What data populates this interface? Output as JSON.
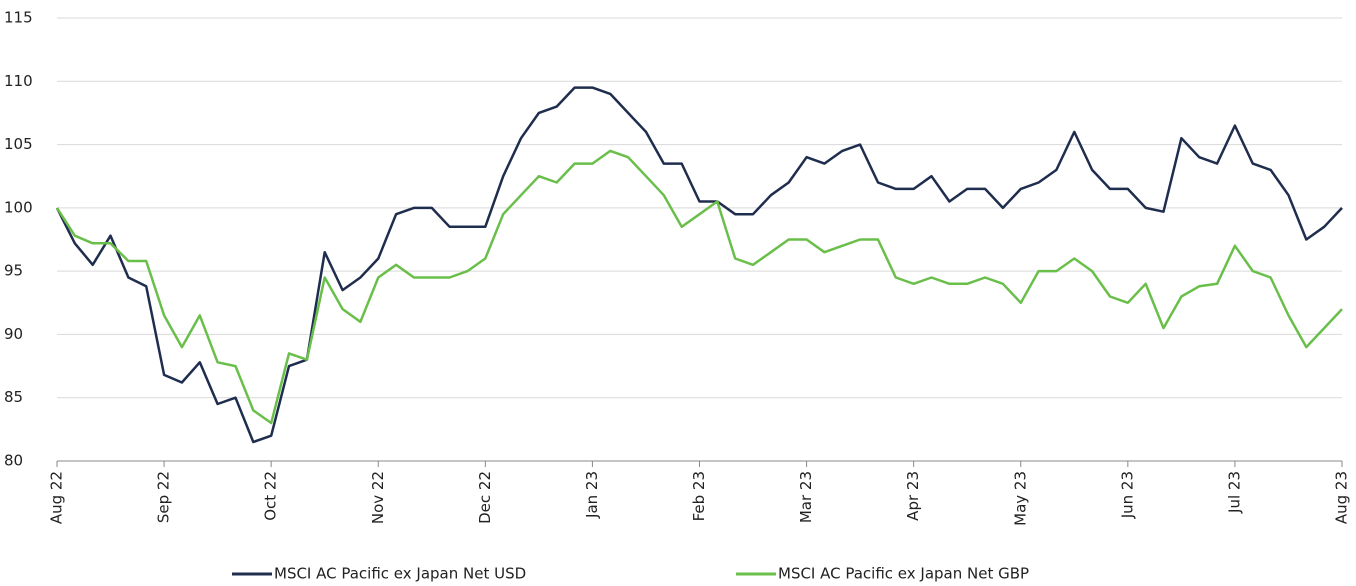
{
  "chart_data": {
    "type": "line",
    "categories": [
      "Aug 22",
      null,
      null,
      null,
      null,
      null,
      "Sep 22",
      null,
      null,
      null,
      null,
      null,
      "Oct 22",
      null,
      null,
      null,
      null,
      null,
      "Nov 22",
      null,
      null,
      null,
      null,
      null,
      "Dec 22",
      null,
      null,
      null,
      null,
      null,
      "Jan 23",
      null,
      null,
      null,
      null,
      null,
      "Feb 23",
      null,
      null,
      null,
      null,
      null,
      "Mar 23",
      null,
      null,
      null,
      null,
      null,
      "Apr 23",
      null,
      null,
      null,
      null,
      null,
      "May 23",
      null,
      null,
      null,
      null,
      null,
      "Jun 23",
      null,
      null,
      null,
      null,
      null,
      "Jul 23",
      null,
      null,
      null,
      null,
      null,
      "Aug 23"
    ],
    "series": [
      {
        "name": "MSCI AC Pacific ex Japan Net USD",
        "color": "#1f2d4e",
        "values": [
          100,
          97.2,
          95.5,
          97.8,
          94.5,
          93.8,
          86.8,
          86.2,
          87.8,
          84.5,
          85,
          81.5,
          82,
          87.5,
          88,
          96.5,
          93.5,
          94.5,
          96,
          99.5,
          100,
          100,
          98.5,
          98.5,
          98.5,
          102.5,
          105.5,
          107.5,
          108,
          109.5,
          109.5,
          109,
          107.5,
          106,
          103.5,
          103.5,
          100.5,
          100.5,
          99.5,
          99.5,
          101,
          102,
          104,
          103.5,
          104.5,
          105,
          102,
          101.5,
          101.5,
          102.5,
          100.5,
          101.5,
          101.5,
          100,
          101.5,
          102,
          103,
          106,
          103,
          101.5,
          101.5,
          100,
          99.7,
          105.5,
          104,
          103.5,
          106.5,
          103.5,
          103,
          101,
          97.5,
          98.5,
          100
        ]
      },
      {
        "name": "MSCI AC Pacific ex Japan Net GBP",
        "color": "#6abf4b",
        "values": [
          100,
          97.8,
          97.2,
          97.2,
          95.8,
          95.8,
          91.5,
          89,
          91.5,
          87.8,
          87.5,
          84,
          83,
          88.5,
          88,
          94.5,
          92,
          91,
          94.5,
          95.5,
          94.5,
          94.5,
          94.5,
          95,
          96,
          99.5,
          101,
          102.5,
          102,
          103.5,
          103.5,
          104.5,
          104,
          102.5,
          101,
          98.5,
          99.5,
          100.5,
          96,
          95.5,
          96.5,
          97.5,
          97.5,
          96.5,
          97,
          97.5,
          97.5,
          94.5,
          94,
          94.5,
          94,
          94,
          94.5,
          94,
          92.5,
          95,
          95,
          96,
          95,
          93,
          92.5,
          94,
          90.5,
          93,
          93.8,
          94,
          97,
          95,
          94.5,
          91.5,
          89,
          90.5,
          92
        ]
      }
    ],
    "ylim": [
      80,
      115
    ],
    "yticks": [
      80,
      85,
      90,
      95,
      100,
      105,
      110,
      115
    ],
    "grid": true,
    "legend": "bottom"
  }
}
